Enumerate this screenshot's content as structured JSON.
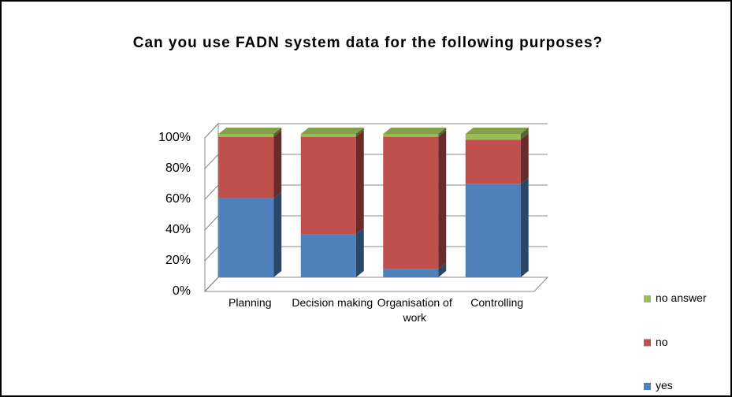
{
  "chart_data": {
    "type": "bar",
    "stacked": true,
    "title": "Can you use FADN system data for the following purposes?",
    "categories": [
      "Planning",
      "Decision making",
      "Organisation of work",
      "Controlling"
    ],
    "series": [
      {
        "name": "yes",
        "color": "#4f81bd",
        "values": [
          55,
          30,
          6,
          65
        ]
      },
      {
        "name": "no",
        "color": "#c0504d",
        "values": [
          43,
          68,
          92,
          31
        ]
      },
      {
        "name": "no answer",
        "color": "#9bbb59",
        "values": [
          2,
          2,
          2,
          4
        ]
      }
    ],
    "ylim": [
      0,
      100
    ],
    "yticks": [
      {
        "value": 0,
        "label": "0%"
      },
      {
        "value": 20,
        "label": "20%"
      },
      {
        "value": 40,
        "label": "40%"
      },
      {
        "value": 60,
        "label": "60%"
      },
      {
        "value": 80,
        "label": "80%"
      },
      {
        "value": 100,
        "label": "100%"
      }
    ],
    "grid": true,
    "legend": "right"
  }
}
